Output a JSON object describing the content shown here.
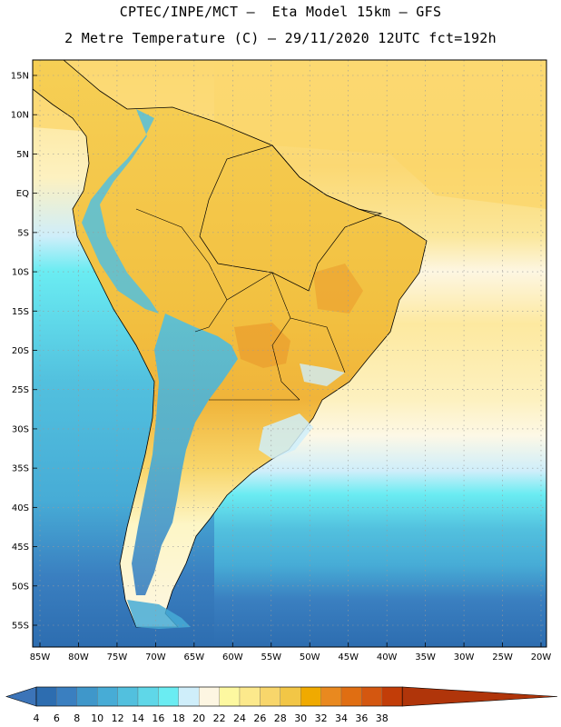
{
  "header": {
    "line1": "CPTEC/INPE/MCT –  Eta Model 15km – GFS",
    "line2": "2 Metre Temperature (C) – 29/11/2020 12UTC fct=192h"
  },
  "axes": {
    "lat_labels": [
      "15N",
      "10N",
      "5N",
      "EQ",
      "5S",
      "10S",
      "15S",
      "20S",
      "25S",
      "30S",
      "35S",
      "40S",
      "45S",
      "50S",
      "55S"
    ],
    "lat_values": [
      15,
      10,
      5,
      0,
      -5,
      -10,
      -15,
      -20,
      -25,
      -30,
      -35,
      -40,
      -45,
      -50,
      -55
    ],
    "lon_labels": [
      "85W",
      "80W",
      "75W",
      "70W",
      "65W",
      "60W",
      "55W",
      "50W",
      "45W",
      "40W",
      "35W",
      "30W",
      "25W",
      "20W"
    ],
    "lon_values": [
      -85,
      -80,
      -75,
      -70,
      -65,
      -60,
      -55,
      -50,
      -45,
      -40,
      -35,
      -30,
      -25,
      -20
    ]
  },
  "colorbar": {
    "labels": [
      "4",
      "6",
      "8",
      "10",
      "12",
      "14",
      "16",
      "18",
      "20",
      "22",
      "24",
      "26",
      "28",
      "30",
      "32",
      "34",
      "36",
      "38"
    ],
    "colors": [
      "#2d6db0",
      "#3a7fc0",
      "#3f97ca",
      "#47acd6",
      "#52c0de",
      "#5fd7e8",
      "#6aecf2",
      "#cfeefa",
      "#fdf6e2",
      "#fdf8a0",
      "#fce98c",
      "#f8d66b",
      "#f2c646",
      "#f0aa00",
      "#e9891f",
      "#e06e12",
      "#d45710",
      "#c23d08"
    ],
    "under_color": "#3c74b8",
    "over_color": "#b0350a"
  }
}
